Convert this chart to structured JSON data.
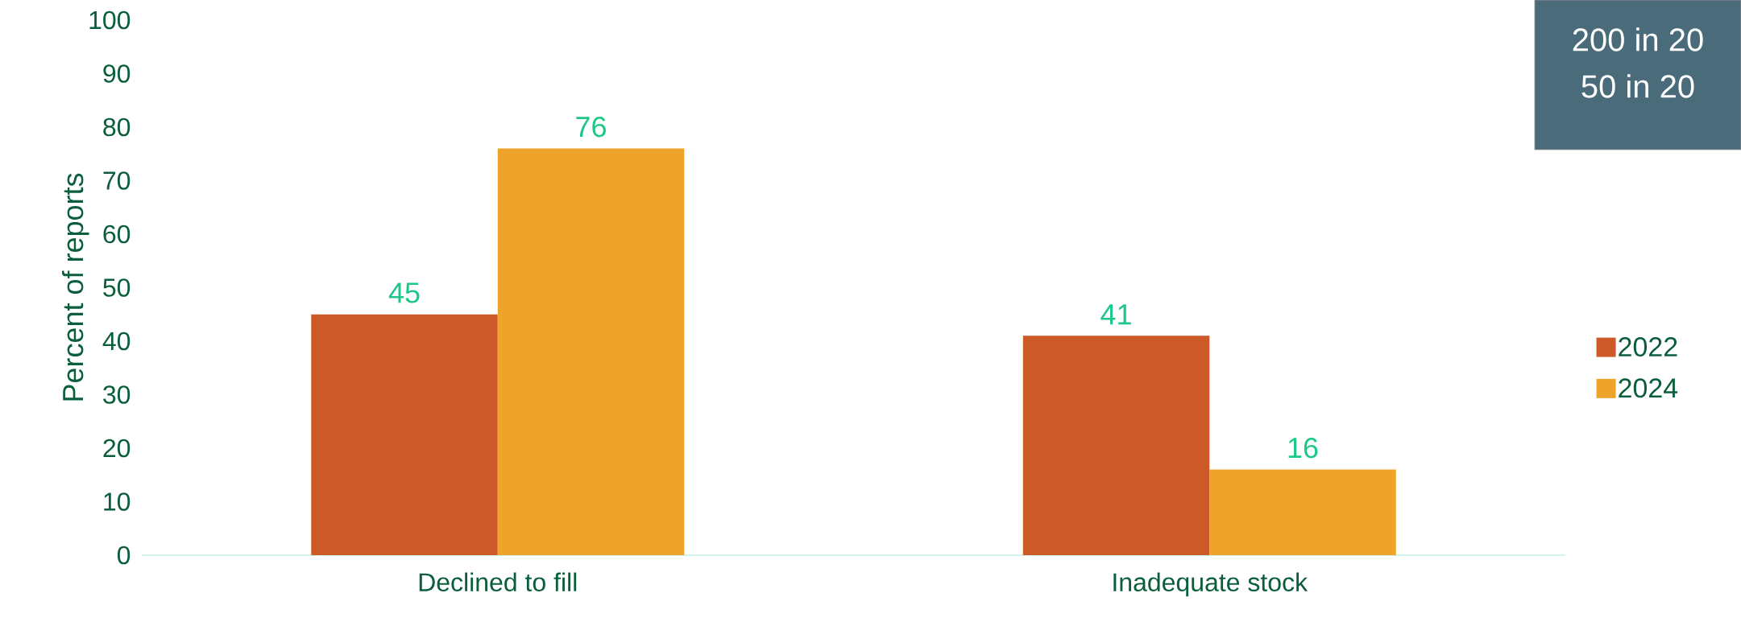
{
  "chart_data": {
    "type": "bar",
    "ylabel": "Percent of reports",
    "categories": [
      "Declined to fill",
      "Inadequate stock"
    ],
    "series": [
      {
        "name": "2022",
        "color": "#cb5a28",
        "values": [
          45,
          41
        ]
      },
      {
        "name": "2024",
        "color": "#eea42a",
        "values": [
          76,
          16
        ]
      }
    ],
    "ylim": [
      0,
      100
    ],
    "yticks": [
      0,
      10,
      20,
      30,
      40,
      50,
      60,
      70,
      80,
      90,
      100
    ],
    "data_labels": true,
    "legend": "right",
    "annotations": [
      "200 in 20",
      "50 in 20"
    ]
  }
}
